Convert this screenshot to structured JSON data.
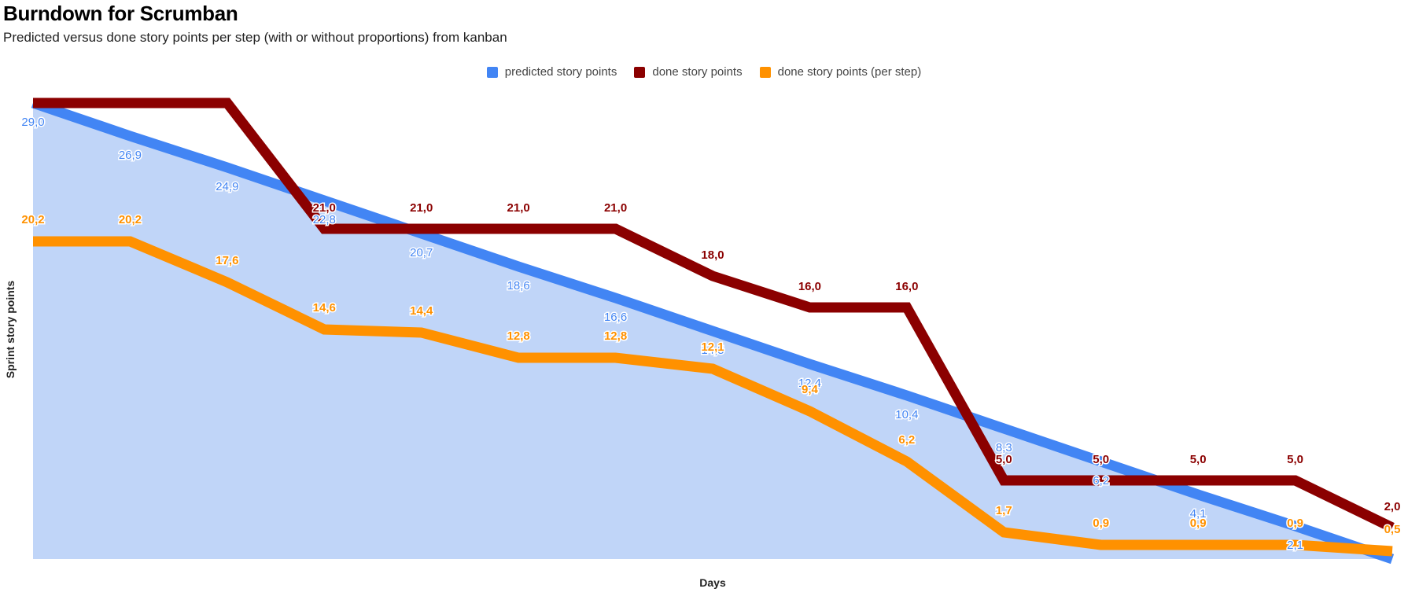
{
  "title": "Burndown for Scrumban",
  "subtitle": "Predicted versus done story points per step (with or without proportions) from kanban",
  "colors": {
    "predicted": "#4285f4",
    "predicted_fill": "#c0d5f8",
    "done": "#8b0000",
    "done_step": "#ff9100"
  },
  "legend": [
    {
      "name": "predicted story points",
      "color": "#4285f4"
    },
    {
      "name": "done story points",
      "color": "#8b0000"
    },
    {
      "name": "done story points (per step)",
      "color": "#ff9100"
    }
  ],
  "chart_data": {
    "type": "line",
    "xlabel": "Days",
    "ylabel": "Sprint story points",
    "grid": false,
    "legend_position": "top",
    "series": [
      {
        "name": "predicted story points",
        "color": "#4285f4",
        "area": true,
        "values": [
          29.0,
          26.9,
          24.9,
          22.8,
          20.7,
          18.6,
          16.6,
          14.5,
          12.4,
          10.4,
          8.3,
          6.2,
          4.1,
          2.1,
          0.0
        ],
        "labels": [
          "29,0",
          "26,9",
          "24,9",
          "22,8",
          "20,7",
          "18,6",
          "16,6",
          "14,5",
          "12,4",
          "10,4",
          "8,3",
          "6,2",
          "4,1",
          "2,1",
          ""
        ]
      },
      {
        "name": "done story points",
        "color": "#8b0000",
        "values": [
          29.0,
          29.0,
          29.0,
          21.0,
          21.0,
          21.0,
          21.0,
          18.0,
          16.0,
          16.0,
          5.0,
          5.0,
          5.0,
          5.0,
          2.0
        ],
        "labels": [
          "",
          "",
          "",
          "21,0",
          "21,0",
          "21,0",
          "21,0",
          "18,0",
          "16,0",
          "16,0",
          "5,0",
          "5,0",
          "5,0",
          "5,0",
          "2,0"
        ]
      },
      {
        "name": "done story points (per step)",
        "color": "#ff9100",
        "values": [
          20.2,
          20.2,
          17.6,
          14.6,
          14.4,
          12.8,
          12.8,
          12.1,
          9.4,
          6.2,
          1.7,
          0.9,
          0.9,
          0.9,
          0.5
        ],
        "labels": [
          "20,2",
          "20,2",
          "17,6",
          "14,6",
          "14,4",
          "12,8",
          "12,8",
          "12,1",
          "9,4",
          "6,2",
          "1,7",
          "0,9",
          "0,9",
          "0,9",
          "0,5"
        ]
      }
    ]
  }
}
